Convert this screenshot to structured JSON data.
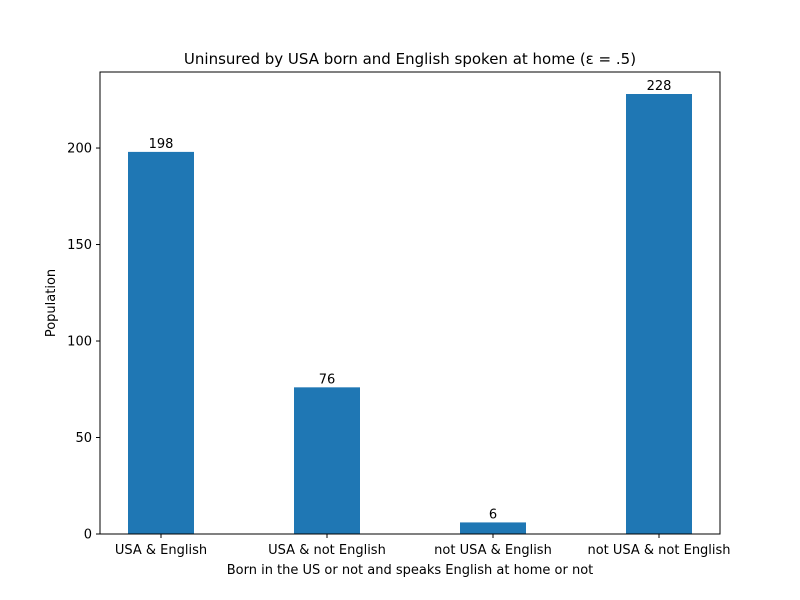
{
  "chart_data": {
    "type": "bar",
    "title": "Uninsured by USA born and English spoken at home (ε = .5)",
    "xlabel": "Born in the US or not and speaks English at home or not",
    "ylabel": "Population",
    "categories": [
      "USA & English",
      "USA & not English",
      "not USA & English",
      "not USA & not English"
    ],
    "values": [
      198,
      76,
      6,
      228
    ],
    "data_labels": [
      "198",
      "76",
      "6",
      "228"
    ],
    "ylim": [
      0,
      239.4
    ],
    "yticks": [
      0,
      50,
      100,
      150,
      200
    ],
    "grid": false,
    "legend": "none",
    "bar_color": "#1f77b4"
  }
}
